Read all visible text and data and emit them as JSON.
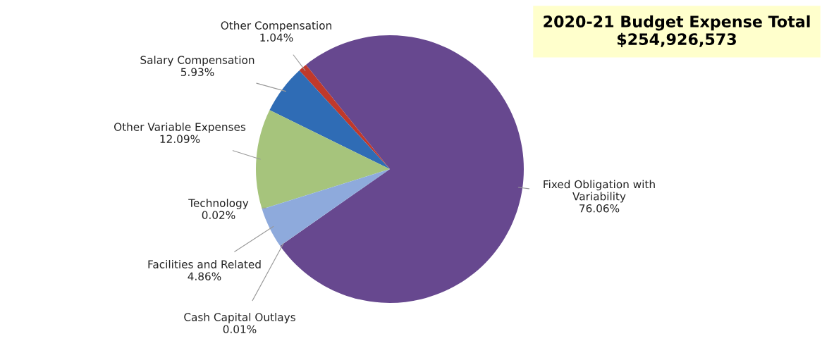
{
  "chart_data": {
    "type": "pie",
    "title": "2020-21 Budget Expense Total\n$254,926,573",
    "categories": [
      "Fixed Obligation with\nVariability",
      "Other Compensation",
      "Salary Compensation",
      "Other Variable Expenses",
      "Technology",
      "Facilities and Related",
      "Cash Capital Outlays"
    ],
    "values": [
      76.06,
      1.04,
      5.93,
      12.09,
      0.02,
      4.86,
      0.01
    ],
    "colors": [
      "#67488f",
      "#c0392b",
      "#2f6cb5",
      "#a6c47c",
      "#4bacc6",
      "#8eaadc",
      "#f79646"
    ],
    "value_labels": [
      "76.06%",
      "1.04%",
      "5.93%",
      "12.09%",
      "0.02%",
      "4.86%",
      "0.01%"
    ]
  }
}
